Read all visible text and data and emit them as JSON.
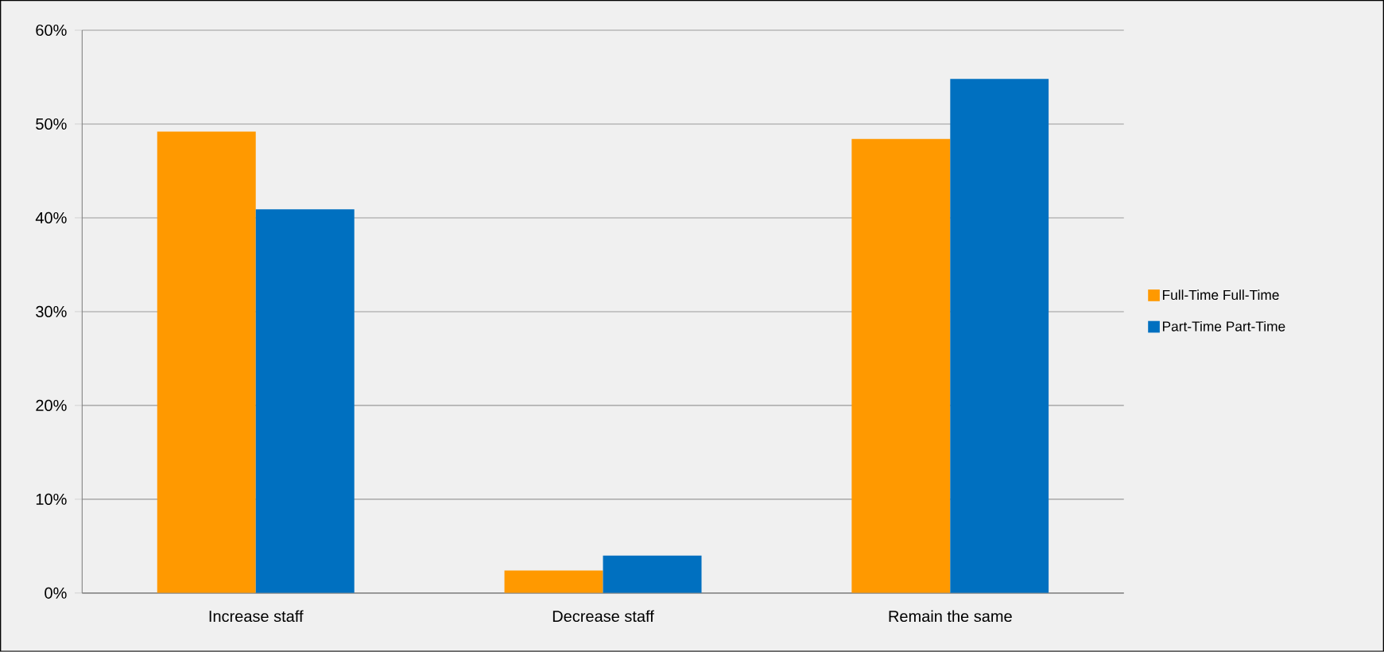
{
  "chart_data": {
    "type": "bar",
    "categories": [
      "Increase staff",
      "Decrease staff",
      "Remain the same"
    ],
    "series": [
      {
        "name": "Full-Time Full-Time",
        "color": "#ff9900",
        "values": [
          49.2,
          2.4,
          48.4
        ]
      },
      {
        "name": "Part-Time Part-Time",
        "color": "#0070c0",
        "values": [
          40.9,
          4.0,
          54.8
        ]
      }
    ],
    "ylim": [
      0,
      60
    ],
    "yticks": [
      {
        "value": 0,
        "label": "0%"
      },
      {
        "value": 10,
        "label": "10%"
      },
      {
        "value": 20,
        "label": "20%"
      },
      {
        "value": 30,
        "label": "30%"
      },
      {
        "value": 40,
        "label": "40%"
      },
      {
        "value": 50,
        "label": "50%"
      },
      {
        "value": 60,
        "label": "60%"
      }
    ],
    "grid": "y",
    "legend": "right"
  }
}
